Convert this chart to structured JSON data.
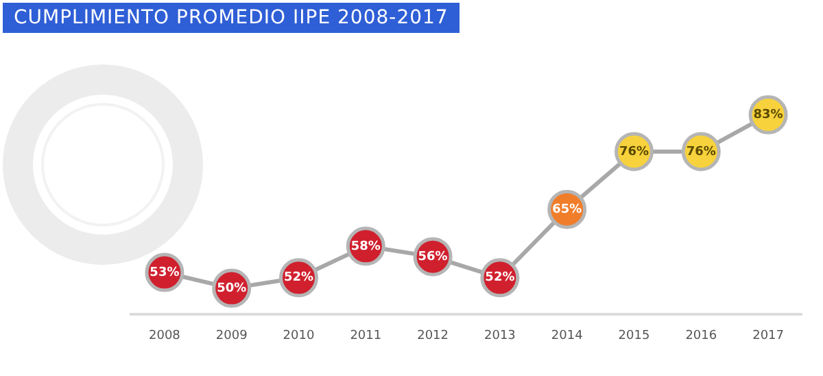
{
  "chart_data": {
    "type": "line",
    "title": "CUMPLIMIENTO PROMEDIO IIPE 2008-2017",
    "categories": [
      "2008",
      "2009",
      "2010",
      "2011",
      "2012",
      "2013",
      "2014",
      "2015",
      "2016",
      "2017"
    ],
    "series": [
      {
        "color": "#a8a8a8",
        "values": [
          53,
          50,
          52,
          58,
          56,
          52,
          65,
          76,
          76,
          83
        ],
        "colors": [
          "#d0202e",
          "#d0202e",
          "#d0202e",
          "#d0202e",
          "#d0202e",
          "#d0202e",
          "#f07d2a",
          "#f7d23c",
          "#f7d23c",
          "#f7d23c"
        ],
        "value_labels": [
          "53%",
          "50%",
          "52%",
          "58%",
          "56%",
          "52%",
          "65%",
          "76%",
          "76%",
          "83%"
        ]
      }
    ],
    "marker": "circle",
    "grid": false,
    "legend": false,
    "tick_labels": "x"
  }
}
